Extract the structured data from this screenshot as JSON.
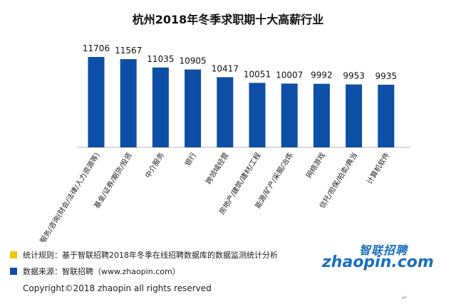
{
  "colors": {
    "bar": "#0d4fa6",
    "rule_swatch": "#f5c400",
    "source_swatch": "#0d4fa6"
  },
  "notes": {
    "rule": "统计规则：基于智联招聘2018年冬季在线招聘数据库的数据监测统计分析",
    "source": "数据来源：智联招聘（www.zhaopin.com）"
  },
  "footer": {
    "copyright": "Copyright©2018 zhaopin all rights reserved"
  },
  "logo": {
    "cn": "智联招聘",
    "en": "zhaopin.com"
  },
  "chart_data": {
    "type": "bar",
    "title": "杭州2018年冬季求职期十大高薪行业",
    "categories": [
      "专业服务/咨询(财会/法律/人力资源等)",
      "基金/证券/期货/投资",
      "中介服务",
      "银行",
      "跨领域经营",
      "房地产/建筑/建材/工程",
      "能源/矿产/采掘/冶炼",
      "网络游戏",
      "信托/担保/拍卖/典当",
      "计算机软件"
    ],
    "values": [
      11706,
      11567,
      11035,
      10905,
      10417,
      10051,
      10007,
      9992,
      9953,
      9935
    ],
    "data_labels": [
      "11706",
      "11567",
      "11035",
      "10905",
      "10417",
      "10051",
      "10007",
      "9992",
      "9953",
      "9935"
    ],
    "grid": false,
    "legend": "none"
  }
}
